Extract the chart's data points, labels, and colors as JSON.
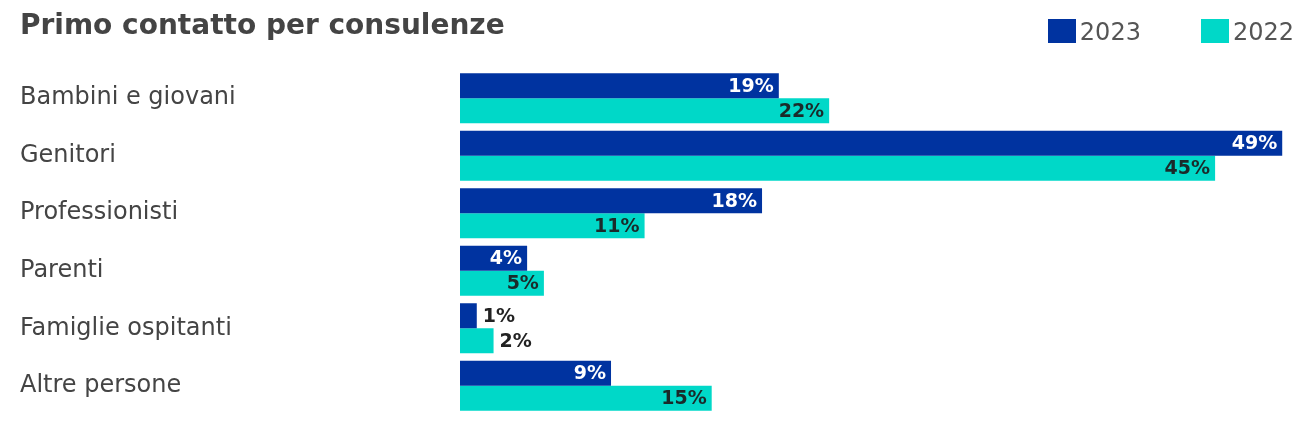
{
  "chart_data": {
    "type": "bar",
    "orientation": "horizontal",
    "title": "Primo contatto per consulenze",
    "categories": [
      "Bambini e giovani",
      "Genitori",
      "Professionisti",
      "Parenti",
      "Famiglie ospitanti",
      "Altre persone"
    ],
    "series": [
      {
        "name": "2023",
        "color": "#0033a0",
        "values": [
          19,
          49,
          18,
          4,
          1,
          9
        ],
        "value_labels": [
          "19%",
          "49%",
          "18%",
          "4%",
          "1%",
          "9%"
        ]
      },
      {
        "name": "2022",
        "color": "#00d8c8",
        "values": [
          22,
          45,
          11,
          5,
          2,
          15
        ],
        "value_labels": [
          "22%",
          "45%",
          "11%",
          "5%",
          "2%",
          "15%"
        ]
      }
    ],
    "legend": "top right"
  }
}
